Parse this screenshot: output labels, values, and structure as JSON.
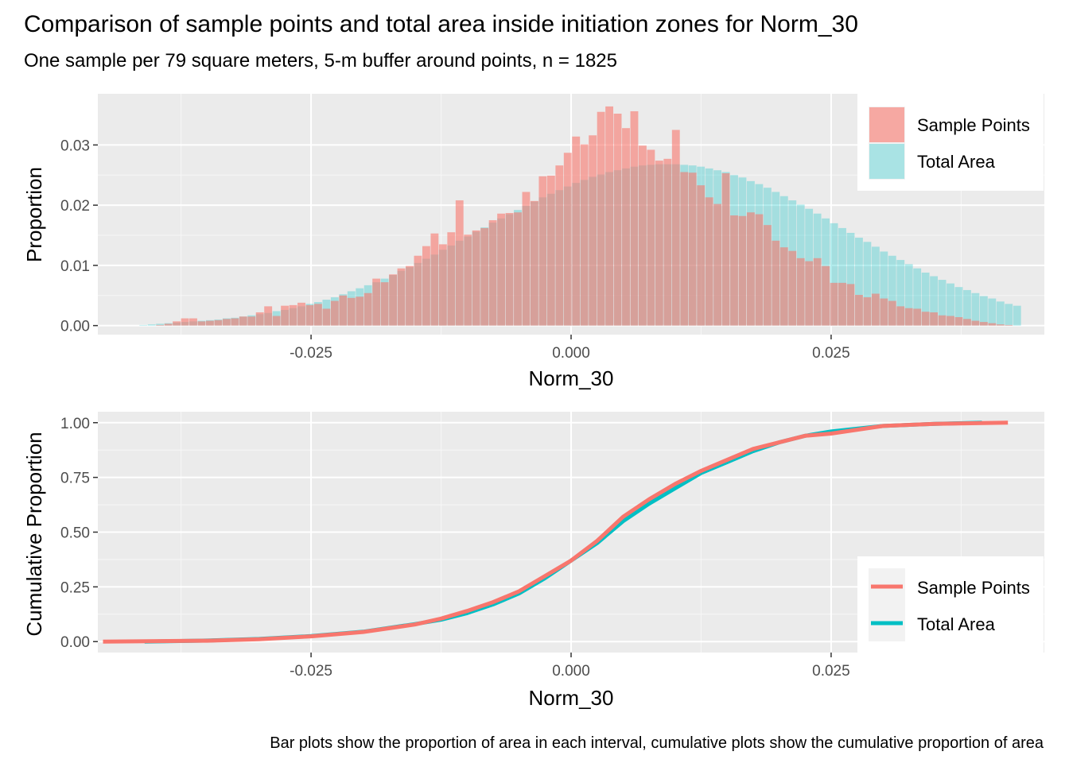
{
  "title": "Comparison of sample points and total area inside initiation zones for Norm_30",
  "subtitle": "One sample per 79 square meters, 5-m buffer around points, n = 1825",
  "caption": "Bar plots show the proportion of area in each interval, cumulative plots show the cumulative proportion of area",
  "colors": {
    "sample_points": "#F8766D",
    "total_area": "#00BFC4",
    "panel_bg": "#EBEBEB",
    "grid": "#FFFFFF"
  },
  "chart_data": [
    {
      "type": "bar",
      "subtype": "overlaid-histogram",
      "xlabel": "Norm_30",
      "ylabel": "Proportion",
      "xlim": [
        -0.0455,
        0.0455
      ],
      "ylim": [
        -0.0015,
        0.0385
      ],
      "x_ticks": [
        -0.025,
        0.0,
        0.025
      ],
      "x_tick_labels": [
        "-0.025",
        "0.000",
        "0.025"
      ],
      "y_ticks": [
        0.0,
        0.01,
        0.02,
        0.03
      ],
      "y_tick_labels": [
        "0.00",
        "0.01",
        "0.02",
        "0.03"
      ],
      "grid": true,
      "legend_position": "top-right",
      "bin_start": -0.0415,
      "bin_width": 0.0008,
      "series": [
        {
          "name": "Sample Points",
          "values": [
            0.0,
            0.0,
            0.0001,
            0.0003,
            0.0007,
            0.0012,
            0.0012,
            0.0007,
            0.0008,
            0.0009,
            0.0011,
            0.0012,
            0.0015,
            0.0015,
            0.0022,
            0.0032,
            0.0016,
            0.0033,
            0.0034,
            0.0038,
            0.0034,
            0.0036,
            0.0028,
            0.0041,
            0.005,
            0.0046,
            0.0048,
            0.0054,
            0.0078,
            0.0072,
            0.0085,
            0.0095,
            0.0099,
            0.0116,
            0.0132,
            0.0153,
            0.0135,
            0.0155,
            0.0208,
            0.0151,
            0.0158,
            0.0162,
            0.0175,
            0.0186,
            0.0187,
            0.0188,
            0.0222,
            0.0207,
            0.0248,
            0.0249,
            0.0266,
            0.0287,
            0.0314,
            0.0301,
            0.0316,
            0.0355,
            0.0364,
            0.0352,
            0.0328,
            0.0356,
            0.0299,
            0.0292,
            0.0274,
            0.0277,
            0.0325,
            0.0255,
            0.0254,
            0.0233,
            0.0213,
            0.0202,
            0.0253,
            0.0183,
            0.0182,
            0.0188,
            0.0185,
            0.0167,
            0.0141,
            0.013,
            0.0124,
            0.0112,
            0.0107,
            0.0112,
            0.0099,
            0.0071,
            0.0071,
            0.0069,
            0.0051,
            0.0047,
            0.0053,
            0.0045,
            0.0041,
            0.0032,
            0.0029,
            0.0028,
            0.0023,
            0.0022,
            0.0017,
            0.0016,
            0.0014,
            0.0011,
            0.0008,
            0.0006,
            0.0004,
            0.0002,
            0.0001,
            0.0
          ]
        },
        {
          "name": "Total Area",
          "values": [
            0.0001,
            0.0002,
            0.0003,
            0.0004,
            0.0005,
            0.0006,
            0.0007,
            0.0008,
            0.0009,
            0.001,
            0.0012,
            0.0013,
            0.0015,
            0.0017,
            0.0019,
            0.0021,
            0.0024,
            0.0026,
            0.0029,
            0.0032,
            0.0036,
            0.0039,
            0.0043,
            0.0047,
            0.0052,
            0.0057,
            0.0062,
            0.0067,
            0.0072,
            0.0078,
            0.0084,
            0.0091,
            0.0097,
            0.0104,
            0.0111,
            0.0118,
            0.0126,
            0.0133,
            0.0141,
            0.0148,
            0.0156,
            0.0163,
            0.0171,
            0.0178,
            0.0185,
            0.0192,
            0.0199,
            0.0206,
            0.0213,
            0.0219,
            0.0225,
            0.0231,
            0.0237,
            0.0242,
            0.0247,
            0.0251,
            0.0255,
            0.0258,
            0.0261,
            0.0264,
            0.0266,
            0.0267,
            0.0268,
            0.0268,
            0.0268,
            0.0267,
            0.0266,
            0.0264,
            0.0261,
            0.0258,
            0.0255,
            0.025,
            0.0246,
            0.024,
            0.0235,
            0.0229,
            0.0222,
            0.0215,
            0.0208,
            0.0201,
            0.0194,
            0.0186,
            0.0178,
            0.017,
            0.0162,
            0.0154,
            0.0146,
            0.0139,
            0.0131,
            0.0123,
            0.0116,
            0.0109,
            0.0102,
            0.0095,
            0.0088,
            0.0082,
            0.0076,
            0.007,
            0.0064,
            0.0059,
            0.0054,
            0.0049,
            0.0045,
            0.004,
            0.0036,
            0.0033
          ]
        }
      ]
    },
    {
      "type": "line",
      "xlabel": "Norm_30",
      "ylabel": "Cumulative Proportion",
      "xlim": [
        -0.0455,
        0.0455
      ],
      "ylim": [
        -0.05,
        1.05
      ],
      "x_ticks": [
        -0.025,
        0.0,
        0.025
      ],
      "x_tick_labels": [
        "-0.025",
        "0.000",
        "0.025"
      ],
      "y_ticks": [
        0.0,
        0.25,
        0.5,
        0.75,
        1.0
      ],
      "y_tick_labels": [
        "0.00",
        "0.25",
        "0.50",
        "0.75",
        "1.00"
      ],
      "grid": true,
      "legend_position": "bottom-right",
      "series": [
        {
          "name": "Total Area",
          "x": [
            -0.041,
            -0.035,
            -0.03,
            -0.025,
            -0.02,
            -0.015,
            -0.0125,
            -0.01,
            -0.0075,
            -0.005,
            -0.0025,
            0.0,
            0.0025,
            0.005,
            0.0075,
            0.01,
            0.0125,
            0.015,
            0.0175,
            0.02,
            0.0225,
            0.025,
            0.03,
            0.035,
            0.0395
          ],
          "y": [
            0.0,
            0.005,
            0.012,
            0.025,
            0.045,
            0.08,
            0.1,
            0.13,
            0.17,
            0.22,
            0.29,
            0.37,
            0.45,
            0.55,
            0.63,
            0.7,
            0.77,
            0.82,
            0.87,
            0.91,
            0.94,
            0.96,
            0.985,
            0.995,
            1.0
          ]
        },
        {
          "name": "Sample Points",
          "x": [
            -0.045,
            -0.035,
            -0.03,
            -0.025,
            -0.02,
            -0.015,
            -0.0125,
            -0.01,
            -0.0075,
            -0.005,
            -0.0025,
            0.0,
            0.0025,
            0.005,
            0.0075,
            0.01,
            0.0125,
            0.015,
            0.0175,
            0.02,
            0.0225,
            0.025,
            0.03,
            0.035,
            0.042
          ],
          "y": [
            0.0,
            0.004,
            0.011,
            0.024,
            0.044,
            0.078,
            0.105,
            0.14,
            0.18,
            0.23,
            0.3,
            0.37,
            0.46,
            0.57,
            0.65,
            0.72,
            0.78,
            0.83,
            0.88,
            0.91,
            0.94,
            0.95,
            0.985,
            0.995,
            1.0
          ]
        }
      ]
    }
  ],
  "legends": {
    "top": {
      "items": [
        "Sample Points",
        "Total Area"
      ]
    },
    "bottom": {
      "items": [
        "Sample Points",
        "Total Area"
      ]
    }
  }
}
